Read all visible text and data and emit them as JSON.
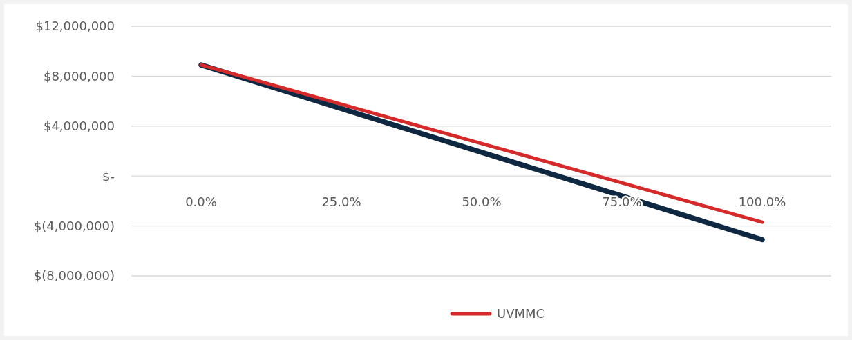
{
  "chart_data": {
    "type": "line",
    "categories": [
      "0.0%",
      "25.0%",
      "50.0%",
      "75.0%",
      "100.0%"
    ],
    "series": [
      {
        "color": "#0e2841",
        "values": [
          8900000,
          5400000,
          1900000,
          -1600000,
          -5100000
        ]
      },
      {
        "name": "UVMMC",
        "color": "#d62a2a",
        "values": [
          8900000,
          5750000,
          2600000,
          -550000,
          -3700000
        ]
      }
    ],
    "ylim": [
      -8000000,
      12000000
    ],
    "yticks": [
      {
        "value": -8000000,
        "label": "$(8,000,000)"
      },
      {
        "value": -4000000,
        "label": "$(4,000,000)"
      },
      {
        "value": 0,
        "label": "$-"
      },
      {
        "value": 4000000,
        "label": "$4,000,000"
      },
      {
        "value": 8000000,
        "label": "$8,000,000"
      },
      {
        "value": 12000000,
        "label": "$12,000,000"
      }
    ],
    "grid": "y",
    "legend": "bottom",
    "marker": "none",
    "line_style": "solid"
  }
}
